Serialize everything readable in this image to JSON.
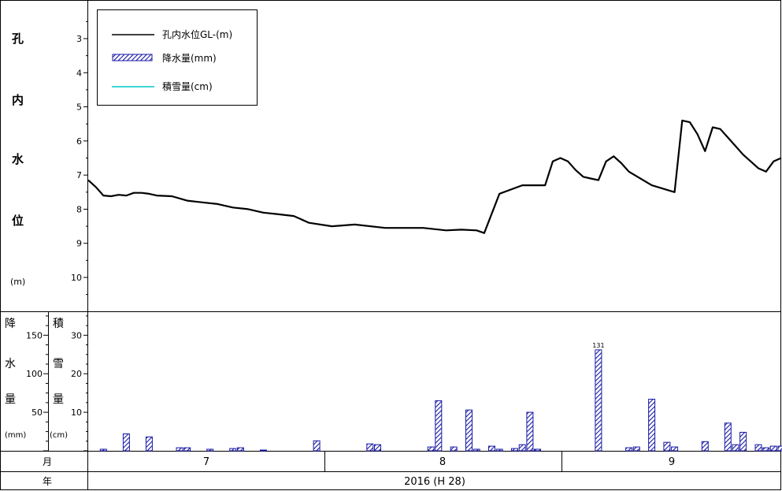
{
  "labels": {
    "water_level_axis": [
      "孔",
      "内",
      "水",
      "位",
      "(m)"
    ],
    "rain_axis": [
      "降",
      "水",
      "量",
      "(mm)"
    ],
    "snow_axis": [
      "積",
      "雪",
      "量",
      "(cm)"
    ],
    "month_row": "月",
    "year_row": "年",
    "year_value": "2016 (H 28)"
  },
  "legend": [
    {
      "label": "孔内水位GL-(m)",
      "color": "#000000",
      "kind": "line"
    },
    {
      "label": "降水量(mm)",
      "color": "#1a1aa6",
      "kind": "hatch"
    },
    {
      "label": "積雪量(cm)",
      "color": "#00c8c8",
      "kind": "line"
    }
  ],
  "months": [
    "7",
    "8",
    "9"
  ],
  "colors": {
    "water_level": "#000000",
    "rain": "#1a1aa6",
    "snow": "#00c8c8"
  },
  "chart_data": [
    {
      "type": "line",
      "series": [
        {
          "name": "孔内水位GL-(m)"
        }
      ],
      "ylim": [
        2.3,
        11.0
      ],
      "y_inverted": true,
      "yticks": [
        3,
        4,
        5,
        6,
        7,
        8,
        9,
        10
      ],
      "xlim": [
        1,
        92
      ],
      "x": [
        1,
        2,
        3,
        4,
        5,
        6,
        7,
        8,
        9,
        10,
        12,
        14,
        16,
        18,
        20,
        22,
        24,
        26,
        28,
        30,
        33,
        36,
        40,
        45,
        48,
        50,
        52,
        53,
        55,
        58,
        61,
        62,
        63,
        64,
        65,
        66,
        67,
        68,
        69,
        70,
        71,
        72,
        75,
        78,
        79,
        80,
        81,
        82,
        83,
        84,
        85,
        86,
        87,
        88,
        89,
        90,
        91,
        92
      ],
      "y": [
        7.15,
        7.35,
        7.6,
        7.62,
        7.58,
        7.6,
        7.52,
        7.52,
        7.55,
        7.6,
        7.62,
        7.75,
        7.8,
        7.85,
        7.95,
        8.0,
        8.1,
        8.15,
        8.2,
        8.4,
        8.5,
        8.45,
        8.55,
        8.55,
        8.62,
        8.6,
        8.62,
        8.7,
        7.55,
        7.3,
        7.3,
        6.6,
        6.5,
        6.6,
        6.85,
        7.05,
        7.1,
        7.15,
        6.6,
        6.45,
        6.65,
        6.9,
        7.3,
        7.5,
        5.4,
        5.45,
        5.8,
        6.3,
        5.6,
        5.65,
        5.9,
        6.15,
        6.4,
        6.6,
        6.8,
        6.9,
        6.6,
        6.5
      ]
    },
    {
      "type": "bar",
      "series": [
        {
          "name": "降水量(mm)"
        }
      ],
      "y_label": "降水量(mm)",
      "y2_label": "積雪量(cm)",
      "ylim": [
        0,
        180
      ],
      "yticks": [
        50,
        100,
        150
      ],
      "y2lim": [
        0,
        36
      ],
      "y2ticks": [
        10,
        20,
        30
      ],
      "x": [
        3,
        6,
        9,
        13,
        14,
        17,
        20,
        21,
        24,
        31,
        38,
        39,
        46,
        47,
        49,
        51,
        52,
        54,
        55,
        57,
        58,
        59,
        60,
        68,
        72,
        73,
        75,
        77,
        78,
        82,
        85,
        86,
        87,
        89,
        90,
        91,
        92
      ],
      "values": [
        2,
        22,
        18,
        4,
        4,
        2,
        3,
        4,
        1,
        13,
        9,
        8,
        5,
        65,
        5,
        53,
        2,
        6,
        2,
        3,
        8,
        50,
        2,
        131,
        4,
        5,
        67,
        11,
        5,
        12,
        36,
        8,
        24,
        8,
        4,
        6,
        6
      ],
      "annotations": [
        {
          "x": 68,
          "text": "131"
        }
      ]
    }
  ]
}
